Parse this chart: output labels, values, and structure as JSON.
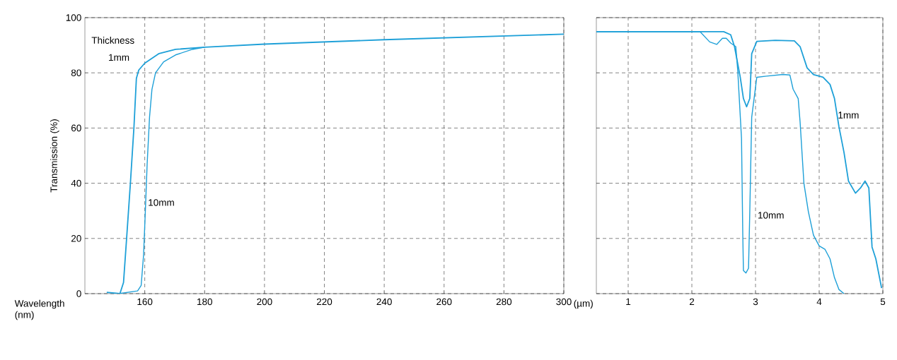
{
  "chart_data": [
    {
      "type": "line",
      "xlabel": "Wavelength (nm)",
      "ylabel": "Transmission (%)",
      "xlim": [
        140,
        300
      ],
      "ylim": [
        0,
        100
      ],
      "xticks": [
        160,
        180,
        200,
        220,
        240,
        260,
        280,
        300
      ],
      "yticks": [
        0,
        20,
        40,
        60,
        80,
        100
      ],
      "grid": true,
      "series": [
        {
          "color": "#1ea0d8",
          "x": [
            147.3,
            151.7,
            152.9,
            154.0,
            155.2,
            156.4,
            157.2,
            158.0,
            160,
            164.8,
            170.3,
            180,
            200,
            240,
            300
          ],
          "values": [
            0.5,
            0,
            4,
            21,
            40,
            60.5,
            78,
            81,
            83.5,
            87,
            88.5,
            89.3,
            90.4,
            92,
            94
          ]
        },
        {
          "color": "#1ea0d8",
          "x": [
            151.3,
            157.6,
            158.8,
            159.6,
            160.2,
            160.8,
            161.6,
            162.4,
            163.6,
            166.3,
            170.3,
            175.9,
            180
          ],
          "values": [
            0,
            1,
            3,
            14,
            30,
            47,
            64,
            74,
            80,
            84,
            86.5,
            88.5,
            89.3
          ]
        }
      ],
      "annotations": [
        "Thickness",
        "1mm",
        "10mm"
      ]
    },
    {
      "type": "line",
      "xlabel": "(µm)",
      "xlim": [
        0.5,
        5
      ],
      "ylim": [
        0,
        100
      ],
      "xticks": [
        1,
        2,
        3,
        4,
        5
      ],
      "yticks": [
        0,
        20,
        40,
        60,
        80,
        100
      ],
      "grid": true,
      "tick_labels": "x",
      "series": [
        {
          "color": "#1ea0d8",
          "x": [
            0.5,
            2.5,
            2.61,
            2.67,
            2.76,
            2.81,
            2.86,
            2.91,
            2.94,
            3.02,
            3.31,
            3.61,
            3.7,
            3.81,
            3.91,
            4.06,
            4.17,
            4.24,
            4.31,
            4.39,
            4.46,
            4.57,
            4.65,
            4.72,
            4.78,
            4.83,
            4.89,
            4.98
          ],
          "values": [
            94.9,
            94.9,
            93.8,
            89.5,
            78.4,
            70.7,
            67.7,
            70.7,
            86.9,
            91.4,
            91.8,
            91.6,
            89.5,
            81.8,
            79.4,
            78.4,
            75.8,
            70.7,
            60.5,
            51.1,
            40.8,
            36.4,
            38.3,
            40.8,
            38.3,
            16.9,
            12.6,
            2.0
          ]
        },
        {
          "color": "#1ea0d8",
          "x": [
            0.5,
            2.13,
            2.28,
            2.39,
            2.48,
            2.54,
            2.61,
            2.69,
            2.72,
            2.78,
            2.8,
            2.81,
            2.85,
            2.89,
            2.91,
            2.94,
            3.02,
            3.17,
            3.43,
            3.54,
            3.59,
            3.67,
            3.7,
            3.76,
            3.83,
            3.91,
            4.0,
            4.09,
            4.17,
            4.24,
            4.31,
            4.39
          ],
          "values": [
            94.9,
            94.9,
            91.2,
            90.3,
            92.5,
            92.5,
            90.8,
            89.5,
            81,
            56.2,
            21.2,
            8.4,
            7.5,
            9.2,
            29.7,
            63.9,
            78.4,
            78.8,
            79.4,
            79.2,
            74.1,
            70.7,
            62.2,
            40,
            29.7,
            21.2,
            17.3,
            16.1,
            12.6,
            5.8,
            1.5,
            0
          ]
        }
      ],
      "annotations": [
        "1mm",
        "10mm"
      ]
    }
  ]
}
